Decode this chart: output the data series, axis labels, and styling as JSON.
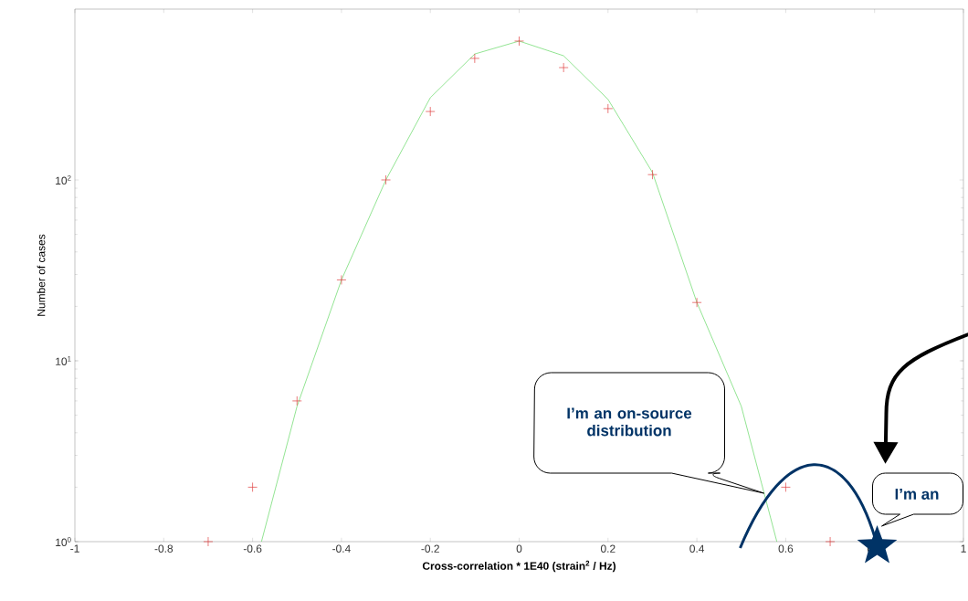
{
  "chart_data": {
    "type": "scatter",
    "xlabel": "Cross-correlation * 1E40 (strain$^{2}$ / Hz)",
    "ylabel": "Number of cases",
    "xlim": [
      -1,
      1
    ],
    "ylim": [
      1,
      880
    ],
    "log": "y",
    "xticks": [
      -1,
      -0.8,
      -0.6,
      -0.4,
      -0.2,
      0,
      0.2,
      0.4,
      0.6,
      0.8,
      1
    ],
    "yticks": [
      {
        "value": 1,
        "label": "10$^{0}$"
      },
      {
        "value": 10,
        "label": "10$^{1}$"
      },
      {
        "value": 100,
        "label": "10$^{2}$"
      }
    ],
    "series": [
      {
        "marker": "cross",
        "color": "#e04040",
        "x": [
          -0.7,
          -0.6,
          -0.5,
          -0.4,
          -0.3,
          -0.2,
          -0.1,
          0,
          0.1,
          0.2,
          0.3,
          0.4,
          0.6,
          0.7
        ],
        "values": [
          1,
          2,
          6,
          28,
          100,
          239,
          470,
          586,
          418,
          248,
          107,
          21,
          2,
          1
        ]
      },
      {
        "type": "line",
        "marker": "none",
        "color": "#77dd77",
        "x": [
          -0.58,
          -0.5,
          -0.4,
          -0.3,
          -0.2,
          -0.1,
          0,
          0.1,
          0.2,
          0.3,
          0.4,
          0.5,
          0.58
        ],
        "values": [
          1,
          5.6,
          28,
          100,
          285,
          497,
          586,
          486,
          279,
          110,
          21,
          5.6,
          1
        ]
      }
    ],
    "annotations": [
      "I’m an on-source distribution",
      "I’m an"
    ]
  }
}
